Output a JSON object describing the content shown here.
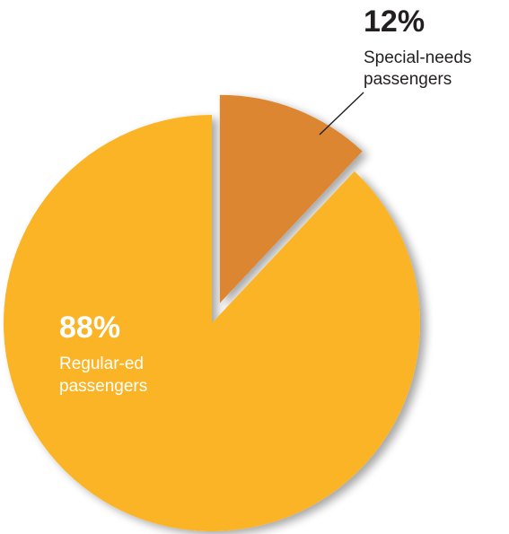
{
  "chart_data": {
    "type": "pie",
    "title": "",
    "slices": [
      {
        "percent_label": "88%",
        "label_lines": [
          "Regular-ed",
          "passengers"
        ],
        "value": 88,
        "color": "#FBB427",
        "text_color": "#ffffff",
        "exploded": false
      },
      {
        "percent_label": "12%",
        "label_lines": [
          "Special-needs",
          "passengers"
        ],
        "value": 12,
        "color": "#DC8633",
        "text_color": "#231f20",
        "exploded": true
      }
    ]
  }
}
